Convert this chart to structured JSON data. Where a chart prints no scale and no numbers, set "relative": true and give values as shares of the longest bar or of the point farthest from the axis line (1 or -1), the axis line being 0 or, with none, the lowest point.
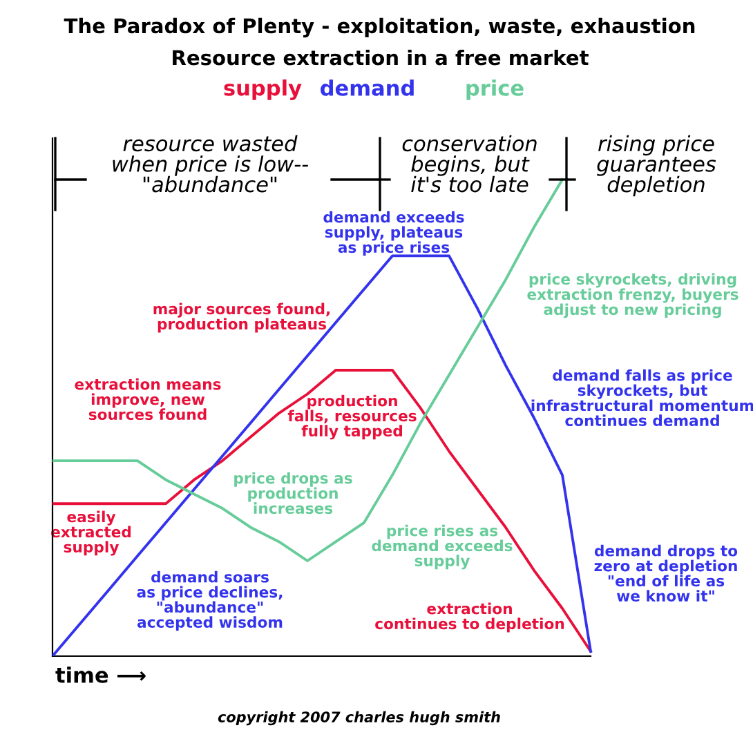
{
  "chart_data": {
    "type": "line",
    "title": "The Paradox of Plenty - exploitation, waste, exhaustion",
    "subtitle": "Resource extraction in a free market",
    "xlabel": "time ⟶",
    "relative": true,
    "legend": "top",
    "grid": false,
    "marker": "none",
    "line_style": "solid",
    "categories": [
      null,
      null,
      null,
      null,
      null,
      null,
      null,
      null,
      null,
      null,
      null,
      null,
      null,
      null,
      null,
      null,
      null,
      null,
      null,
      null
    ],
    "series": [
      {
        "name": "supply",
        "color": "#e8103a",
        "values": [
          0.32,
          0.32,
          0.32,
          0.32,
          0.32,
          0.37,
          0.41,
          0.46,
          0.51,
          0.55,
          0.6,
          0.6,
          0.6,
          0.52,
          0.43,
          0.35,
          0.27,
          0.18,
          0.1,
          0.01
        ]
      },
      {
        "name": "demand",
        "color": "#3333ee",
        "values": [
          0,
          0.07,
          0.14,
          0.21,
          0.28,
          0.35,
          0.42,
          0.49,
          0.56,
          0.63,
          0.7,
          0.77,
          0.84,
          0.84,
          0.84,
          0.73,
          0.61,
          0.5,
          0.38,
          0.01
        ]
      },
      {
        "name": "price",
        "color": "#66cc99",
        "values": [
          0.41,
          0.41,
          0.41,
          0.41,
          0.37,
          0.34,
          0.31,
          0.27,
          0.24,
          0.2,
          0.24,
          0.28,
          0.38,
          0.49,
          0.59,
          0.69,
          0.79,
          0.9,
          1.0,
          null
        ]
      }
    ],
    "annotations": [
      "easily\nextracted\nsupply",
      "extraction means\nimprove, new\nsources found",
      "major sources found,\nproduction plateaus",
      "demand exceeds\nsupply, plateaus\nas price rises",
      "price drops as\nproduction\nincreases",
      "production\nfalls, resources\nfully tapped",
      "price rises as\ndemand exceeds\nsupply",
      "price skyrockets, driving\nextraction frenzy, buyers\nadjust to new pricing",
      "demand falls as price\nskyrockets, but\ninfrastructural momentum\ncontinues demand",
      "demand soars\nas price declines,\n\"abundance\"\naccepted wisdom",
      "extraction\ncontinues to depletion",
      "demand drops to\nzero at depletion\n\"end of life as\nwe know it\"",
      "resource wasted\nwhen price is low--\n\"abundance\"",
      "conservation\nbegins, but\nit's too late",
      "rising price\nguarantees\ndepletion",
      "copyright 2007 charles hugh smith"
    ]
  }
}
